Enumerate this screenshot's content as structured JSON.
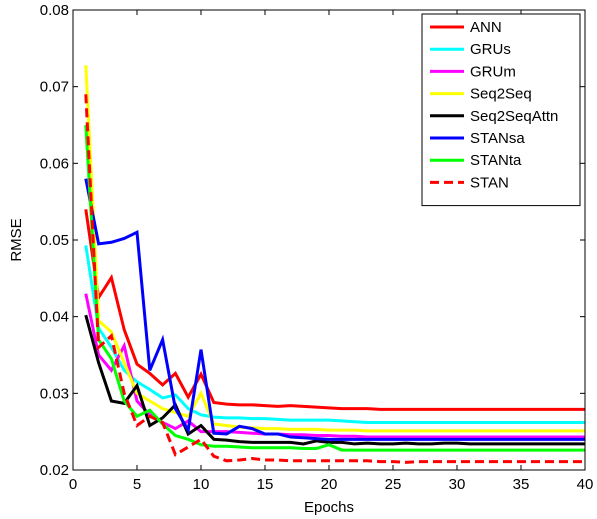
{
  "chart_data": {
    "type": "line",
    "title": "",
    "xlabel": "Epochs",
    "ylabel": "RMSE",
    "xlim": [
      0,
      40
    ],
    "ylim": [
      0.02,
      0.08
    ],
    "xticks": [
      0,
      5,
      10,
      15,
      20,
      25,
      30,
      35,
      40
    ],
    "yticks": [
      0.02,
      0.03,
      0.04,
      0.05,
      0.06,
      0.07,
      0.08
    ],
    "ytick_labels": [
      "0.02",
      "0.03",
      "0.04",
      "0.05",
      "0.06",
      "0.07",
      "0.08"
    ],
    "grid": false,
    "legend_position": "top-right",
    "x": [
      1,
      2,
      3,
      4,
      5,
      6,
      7,
      8,
      9,
      10,
      11,
      12,
      13,
      14,
      15,
      16,
      17,
      18,
      19,
      20,
      21,
      22,
      23,
      24,
      25,
      26,
      27,
      28,
      29,
      30,
      31,
      32,
      33,
      34,
      35,
      36,
      37,
      38,
      39,
      40
    ],
    "series": [
      {
        "name": "ANN",
        "color": "#ff0000",
        "dash": false,
        "values": [
          0.054,
          0.0425,
          0.0451,
          0.0383,
          0.0338,
          0.0326,
          0.0311,
          0.0326,
          0.0295,
          0.0325,
          0.0288,
          0.0286,
          0.0285,
          0.0285,
          0.0284,
          0.0283,
          0.0284,
          0.0283,
          0.0282,
          0.0281,
          0.028,
          0.028,
          0.028,
          0.0279,
          0.0279,
          0.0279,
          0.0279,
          0.0279,
          0.0279,
          0.0279,
          0.0279,
          0.0279,
          0.0279,
          0.0279,
          0.0279,
          0.0279,
          0.0279,
          0.0279,
          0.0279,
          0.0279
        ]
      },
      {
        "name": "GRUs",
        "color": "#00ffff",
        "dash": false,
        "values": [
          0.0493,
          0.0385,
          0.036,
          0.033,
          0.0315,
          0.0305,
          0.0294,
          0.0298,
          0.028,
          0.0272,
          0.0269,
          0.0268,
          0.0268,
          0.0267,
          0.0267,
          0.0266,
          0.0265,
          0.0265,
          0.0265,
          0.0265,
          0.0264,
          0.0263,
          0.0262,
          0.0262,
          0.0262,
          0.0262,
          0.0262,
          0.0262,
          0.0262,
          0.0262,
          0.0262,
          0.0262,
          0.0262,
          0.0262,
          0.0262,
          0.0262,
          0.0262,
          0.0262,
          0.0262,
          0.0262
        ]
      },
      {
        "name": "GRUm",
        "color": "#ff00ff",
        "dash": false,
        "values": [
          0.043,
          0.035,
          0.033,
          0.0362,
          0.029,
          0.0272,
          0.0262,
          0.0254,
          0.0264,
          0.025,
          0.025,
          0.025,
          0.0249,
          0.0248,
          0.0247,
          0.0247,
          0.0246,
          0.0246,
          0.0245,
          0.0245,
          0.0244,
          0.0244,
          0.0243,
          0.0243,
          0.0243,
          0.0243,
          0.0243,
          0.0243,
          0.0243,
          0.0243,
          0.0243,
          0.0243,
          0.0243,
          0.0243,
          0.0243,
          0.0243,
          0.0243,
          0.0243,
          0.0243,
          0.0243
        ]
      },
      {
        "name": "Seq2Seq",
        "color": "#ffff00",
        "dash": false,
        "values": [
          0.0728,
          0.0395,
          0.038,
          0.034,
          0.03,
          0.029,
          0.028,
          0.0275,
          0.027,
          0.03,
          0.026,
          0.0258,
          0.0256,
          0.0255,
          0.0254,
          0.0254,
          0.0253,
          0.0253,
          0.0253,
          0.0252,
          0.0252,
          0.0252,
          0.0251,
          0.0251,
          0.0251,
          0.0251,
          0.0251,
          0.0251,
          0.0251,
          0.0251,
          0.0251,
          0.0251,
          0.0251,
          0.0251,
          0.0251,
          0.0251,
          0.0251,
          0.0251,
          0.0251,
          0.0251
        ]
      },
      {
        "name": "Seq2SeqAttn",
        "color": "#000000",
        "dash": false,
        "values": [
          0.0402,
          0.034,
          0.029,
          0.0287,
          0.031,
          0.0258,
          0.0268,
          0.0285,
          0.0247,
          0.0258,
          0.024,
          0.0239,
          0.0237,
          0.0236,
          0.0236,
          0.0236,
          0.0236,
          0.0234,
          0.0238,
          0.0236,
          0.0236,
          0.0234,
          0.0235,
          0.0234,
          0.0234,
          0.0235,
          0.0234,
          0.0234,
          0.0235,
          0.0235,
          0.0234,
          0.0234,
          0.0234,
          0.0234,
          0.0234,
          0.0234,
          0.0234,
          0.0234,
          0.0234,
          0.0234
        ]
      },
      {
        "name": "STANsa",
        "color": "#0000ff",
        "dash": false,
        "values": [
          0.058,
          0.0495,
          0.0497,
          0.0502,
          0.051,
          0.033,
          0.037,
          0.028,
          0.0252,
          0.0357,
          0.0248,
          0.0247,
          0.0257,
          0.0254,
          0.0247,
          0.0247,
          0.0243,
          0.0242,
          0.0241,
          0.024,
          0.024,
          0.024,
          0.024,
          0.024,
          0.024,
          0.024,
          0.024,
          0.024,
          0.024,
          0.024,
          0.024,
          0.024,
          0.024,
          0.024,
          0.024,
          0.024,
          0.024,
          0.024,
          0.024,
          0.024
        ]
      },
      {
        "name": "STANta",
        "color": "#00ff00",
        "dash": false,
        "values": [
          0.065,
          0.037,
          0.0345,
          0.029,
          0.027,
          0.0278,
          0.026,
          0.0245,
          0.024,
          0.0233,
          0.0231,
          0.0231,
          0.023,
          0.0229,
          0.0229,
          0.0229,
          0.0229,
          0.0228,
          0.0228,
          0.0233,
          0.0226,
          0.0226,
          0.0226,
          0.0226,
          0.0226,
          0.0226,
          0.0226,
          0.0226,
          0.0226,
          0.0226,
          0.0226,
          0.0226,
          0.0226,
          0.0226,
          0.0226,
          0.0226,
          0.0226,
          0.0226,
          0.0226,
          0.0226
        ]
      },
      {
        "name": "STAN",
        "color": "#ff0000",
        "dash": true,
        "values": [
          0.069,
          0.036,
          0.0375,
          0.03,
          0.0258,
          0.027,
          0.0262,
          0.022,
          0.023,
          0.024,
          0.0218,
          0.0212,
          0.0213,
          0.0215,
          0.0213,
          0.0213,
          0.0212,
          0.0212,
          0.0212,
          0.0212,
          0.0212,
          0.0212,
          0.0212,
          0.0211,
          0.0211,
          0.021,
          0.0211,
          0.0211,
          0.0211,
          0.0211,
          0.0211,
          0.0211,
          0.0211,
          0.0211,
          0.0211,
          0.0211,
          0.0211,
          0.0211,
          0.0211,
          0.0211
        ]
      }
    ]
  }
}
